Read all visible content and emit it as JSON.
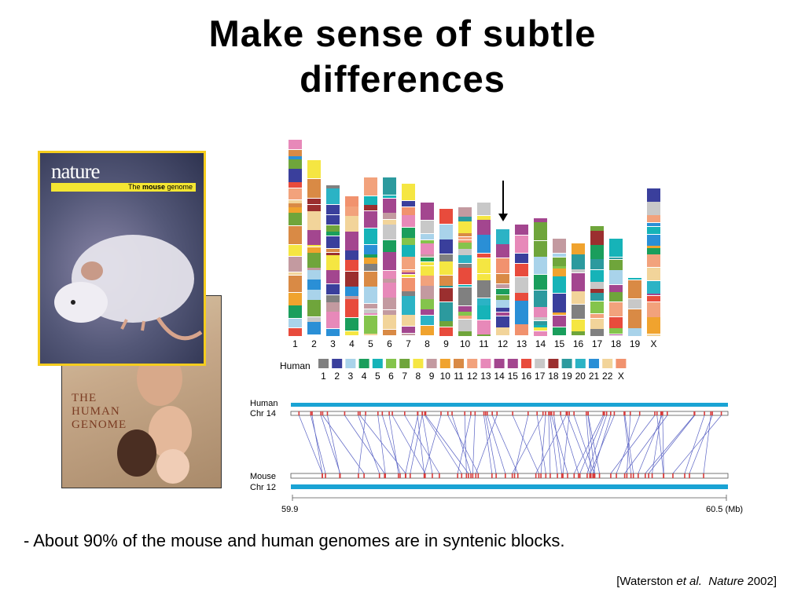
{
  "slide": {
    "title_line1": "Make sense of subtle",
    "title_line2": "differences",
    "bullet": "- About 90% of the mouse and human genomes are in syntenic blocks.",
    "citation_prefix": "[Waterston ",
    "citation_etal": "et al.",
    "citation_journal": "Nature",
    "citation_suffix": " 2002]"
  },
  "covers": {
    "nature_logo": "nature",
    "nature_band_pre": "The ",
    "nature_band_bold": "mouse",
    "nature_band_post": " genome",
    "human_title_1": "THE",
    "human_title_2": "HUMAN",
    "human_title_3": "GENOME"
  },
  "chromosomes": {
    "mouse_labels": [
      "1",
      "2",
      "3",
      "4",
      "5",
      "6",
      "7",
      "8",
      "9",
      "10",
      "11",
      "12",
      "13",
      "14",
      "15",
      "16",
      "17",
      "18",
      "19",
      "X"
    ],
    "legend_title": "Human",
    "human_legend": [
      {
        "label": "1",
        "color": "#808080"
      },
      {
        "label": "2",
        "color": "#3a3f9c"
      },
      {
        "label": "3",
        "color": "#a9d3ea"
      },
      {
        "label": "4",
        "color": "#1a9e5c"
      },
      {
        "label": "5",
        "color": "#16b3b8"
      },
      {
        "label": "6",
        "color": "#84c44c"
      },
      {
        "label": "7",
        "color": "#6fa53b"
      },
      {
        "label": "8",
        "color": "#f5e642"
      },
      {
        "label": "9",
        "color": "#c39aa0"
      },
      {
        "label": "10",
        "color": "#f0a32e"
      },
      {
        "label": "11",
        "color": "#d98a45"
      },
      {
        "label": "12",
        "color": "#f2a27c"
      },
      {
        "label": "13",
        "color": "#e789b9"
      },
      {
        "label": "14",
        "color": "#a3468f"
      },
      {
        "label": "15",
        "color": "#a3468f"
      },
      {
        "label": "16",
        "color": "#e84b3c"
      },
      {
        "label": "17",
        "color": "#c8c8c8"
      },
      {
        "label": "18",
        "color": "#9b2f2f"
      },
      {
        "label": "19",
        "color": "#2c9a9e"
      },
      {
        "label": "20",
        "color": "#2bb3c5"
      },
      {
        "label": "21",
        "color": "#2a8fd6"
      },
      {
        "label": "22",
        "color": "#f2d49a"
      },
      {
        "label": "X",
        "color": "#f1926e"
      }
    ]
  },
  "synteny": {
    "human_label_1": "Human",
    "human_label_2": "Chr 14",
    "mouse_label_1": "Mouse",
    "mouse_label_2": "Chr 12",
    "scale_start": "59.9",
    "scale_end": "60.5 (Mb)"
  }
}
